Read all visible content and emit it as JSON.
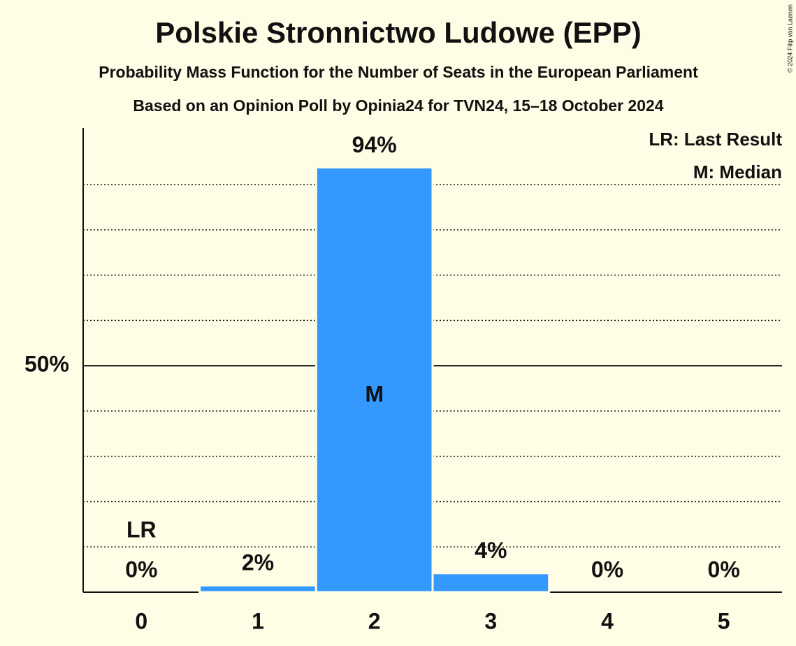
{
  "chart_data": {
    "type": "bar",
    "title": "Polskie Stronnictwo Ludowe (EPP)",
    "subtitle": "Probability Mass Function for the Number of Seats in the European Parliament",
    "subtitle2": "Based on an Opinion Poll by Opinia24 for TVN24, 15–18 October 2024",
    "copyright": "© 2024 Filip van Laenen",
    "categories": [
      "0",
      "1",
      "2",
      "3",
      "4",
      "5"
    ],
    "values": [
      0,
      1.5,
      93.8,
      4.2,
      0,
      0
    ],
    "value_labels": [
      "0%",
      "2%",
      "94%",
      "4%",
      "0%",
      "0%"
    ],
    "color": "#3399ff",
    "ylim": [
      0,
      102.5
    ],
    "yticks": [
      {
        "value": 50,
        "label": "50%"
      }
    ],
    "minor_grid": [
      10,
      20,
      30,
      40,
      60,
      70,
      80,
      90
    ],
    "annotations": [
      {
        "text": "LR",
        "category": "0",
        "position": "above-label"
      },
      {
        "text": "M",
        "category": "2",
        "position": "inside"
      }
    ],
    "legend": [
      "LR: Last Result",
      "M: Median"
    ],
    "legend_position": "top-right"
  }
}
